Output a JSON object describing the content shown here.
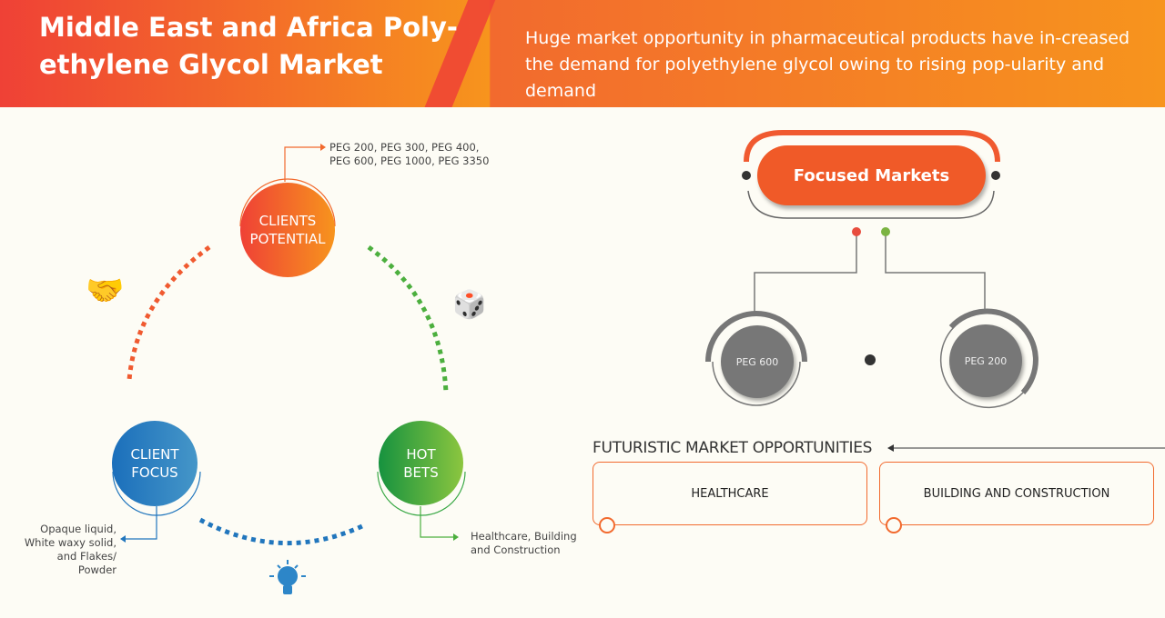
{
  "header": {
    "title": "Middle East and Africa Poly-ethylene Glycol Market",
    "subtitle": "Huge market opportunity in pharmaceutical products have in-creased the demand for polyethylene glycol owing to rising pop-ularity and demand"
  },
  "cycle": {
    "clients_potential": {
      "label_1": "CLIENTS",
      "label_2": "POTENTIAL",
      "note": "PEG 200, PEG 300, PEG 400, PEG 600, PEG 1000, PEG 3350"
    },
    "client_focus": {
      "label_1": "CLIENT",
      "label_2": "FOCUS",
      "note": "Opaque liquid, White waxy solid, and Flakes/ Powder"
    },
    "hot_bets": {
      "label_1": "HOT",
      "label_2": "BETS",
      "note": "Healthcare, Building and Construction"
    }
  },
  "focused_markets": {
    "title": "Focused Markets",
    "items": [
      "PEG 600",
      "PEG 200"
    ]
  },
  "futuristic": {
    "title": "FUTURISTIC MARKET OPPORTUNITIES",
    "items": [
      "HEALTHCARE",
      "BUILDING AND CONSTRUCTION"
    ]
  },
  "colors": {
    "orange": "#f26a2e",
    "red": "#ef4136",
    "green": "#39a845",
    "blue": "#2176bd",
    "gray": "#777777"
  }
}
